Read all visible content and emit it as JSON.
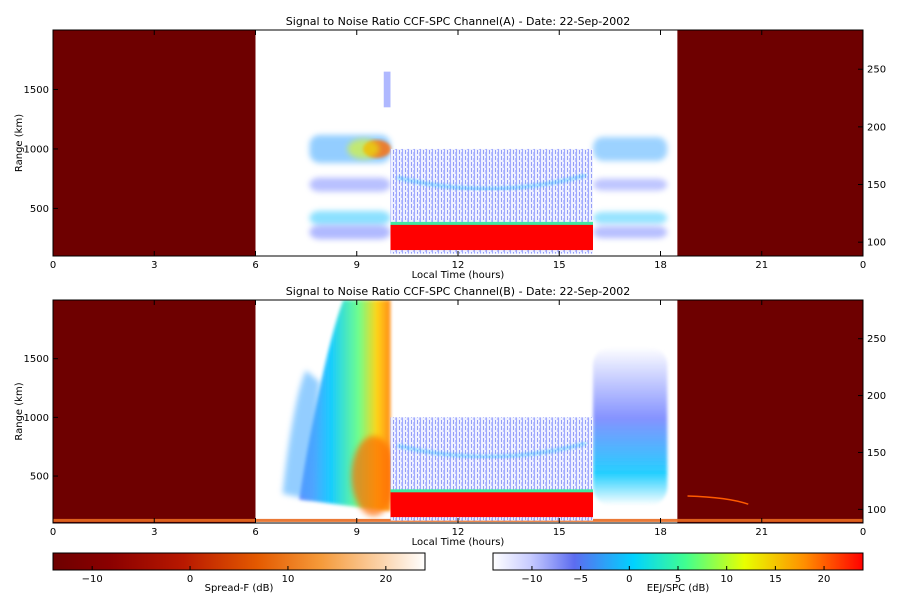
{
  "chart_data": [
    {
      "type": "heatmap",
      "title": "Signal to Noise Ratio CCF-SPC Channel(A) - Date: 22-Sep-2002",
      "xlabel": "Local Time (hours)",
      "ylabel": "Range (km)",
      "xlim": [
        0,
        24
      ],
      "ylim": [
        100,
        2000
      ],
      "x_ticks": [
        {
          "v": 0,
          "t": "0"
        },
        {
          "v": 3,
          "t": "3"
        },
        {
          "v": 6,
          "t": "6"
        },
        {
          "v": 9,
          "t": "9"
        },
        {
          "v": 12,
          "t": "12"
        },
        {
          "v": 15,
          "t": "15"
        },
        {
          "v": 18,
          "t": "18"
        },
        {
          "v": 21,
          "t": "21"
        },
        {
          "v": 24,
          "t": "0"
        }
      ],
      "y_ticks": [
        500,
        1000,
        1500
      ],
      "y2_ticks": [
        {
          "v": 100,
          "t": "100"
        },
        {
          "v": 150,
          "t": "150"
        },
        {
          "v": 200,
          "t": "200"
        },
        {
          "v": 250,
          "t": "250"
        }
      ],
      "y2lim": [
        88,
        284
      ],
      "no_data_blocks": [
        [
          0,
          6
        ],
        [
          18.5,
          24
        ]
      ],
      "spread_f_windows": [
        [
          6,
          10
        ],
        [
          16,
          18.5
        ]
      ],
      "eej_window": [
        10,
        16
      ],
      "eej_range_top_km": 1000,
      "strong_echo_layer": {
        "range_km": [
          150,
          370
        ]
      },
      "spread_f_layers_km": [
        1000,
        700,
        420,
        300
      ]
    },
    {
      "type": "heatmap",
      "title": "Signal to Noise Ratio CCF-SPC Channel(B) - Date: 22-Sep-2002",
      "xlabel": "Local Time (hours)",
      "ylabel": "Range (km)",
      "xlim": [
        0,
        24
      ],
      "ylim": [
        100,
        2000
      ],
      "x_ticks": [
        {
          "v": 0,
          "t": "0"
        },
        {
          "v": 3,
          "t": "3"
        },
        {
          "v": 6,
          "t": "6"
        },
        {
          "v": 9,
          "t": "9"
        },
        {
          "v": 12,
          "t": "12"
        },
        {
          "v": 15,
          "t": "15"
        },
        {
          "v": 18,
          "t": "18"
        },
        {
          "v": 21,
          "t": "21"
        },
        {
          "v": 24,
          "t": "0"
        }
      ],
      "y_ticks": [
        500,
        1000,
        1500
      ],
      "y2_ticks": [
        {
          "v": 100,
          "t": "100"
        },
        {
          "v": 150,
          "t": "150"
        },
        {
          "v": 200,
          "t": "200"
        },
        {
          "v": 250,
          "t": "250"
        }
      ],
      "y2lim": [
        88,
        284
      ],
      "no_data_blocks": [
        [
          0,
          6
        ],
        [
          18.5,
          24
        ]
      ],
      "spread_f_windows": [
        [
          6,
          10
        ],
        [
          16,
          18.5
        ]
      ],
      "eej_window": [
        10,
        16
      ],
      "eej_range_top_km": 1000,
      "strong_echo_layer": {
        "range_km": [
          150,
          370
        ]
      },
      "plume_top_km": 2000
    }
  ],
  "colorbars": [
    {
      "label": "Spread-F (dB)",
      "range": [
        -14,
        24
      ],
      "ticks": [
        {
          "v": -10,
          "t": "−10"
        },
        {
          "v": 0,
          "t": "0"
        },
        {
          "v": 10,
          "t": "10"
        },
        {
          "v": 20,
          "t": "20"
        }
      ],
      "colors": [
        "#6e0000",
        "#8a0000",
        "#b81800",
        "#e45a00",
        "#f59a3a",
        "#fbd2a8",
        "#ffffff"
      ]
    },
    {
      "label": "EEJ/SPC (dB)",
      "range": [
        -14,
        24
      ],
      "ticks": [
        {
          "v": -10,
          "t": "−10"
        },
        {
          "v": -5,
          "t": "−5"
        },
        {
          "v": 0,
          "t": "0"
        },
        {
          "v": 5,
          "t": "5"
        },
        {
          "v": 10,
          "t": "10"
        },
        {
          "v": 15,
          "t": "15"
        },
        {
          "v": 20,
          "t": "20"
        }
      ],
      "colors": [
        "#ffffff",
        "#5c6cf0",
        "#00d2ff",
        "#40ff90",
        "#e8ff00",
        "#ff9000",
        "#ff0000"
      ]
    }
  ]
}
